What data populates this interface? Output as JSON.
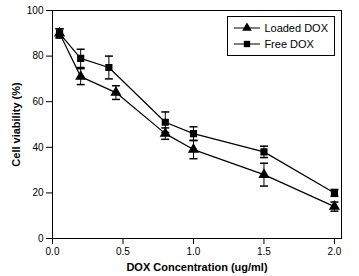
{
  "chart_data": {
    "type": "line",
    "x_label": "DOX Concentration (ug/ml)",
    "y_label": "Cell viability (%)",
    "xlim": [
      0,
      2.05
    ],
    "xticks": [
      {
        "value": 0,
        "label": "0.0"
      },
      0.5,
      {
        "value": 1,
        "label": "1.0"
      },
      1.5,
      {
        "value": 2,
        "label": "2.0"
      }
    ],
    "ylim": [
      0,
      100
    ],
    "yticks": [
      0,
      20,
      40,
      60,
      80,
      100
    ],
    "legend": "top-right",
    "series": [
      {
        "name": "Loaded DOX",
        "color": "#000000",
        "marker": "triangle",
        "line_style": "solid",
        "x": [
          0.05,
          0.2,
          0.45,
          0.8,
          1.0,
          1.5,
          2.0
        ],
        "values": [
          90,
          71,
          64,
          46,
          39,
          28,
          14
        ],
        "errors": [
          2,
          3.5,
          3,
          2.5,
          4,
          5,
          2
        ]
      },
      {
        "name": "Free DOX",
        "color": "#000000",
        "marker": "square",
        "line_style": "solid",
        "x": [
          0.05,
          0.2,
          0.4,
          0.8,
          1.0,
          1.5,
          2.0
        ],
        "values": [
          90,
          79,
          75,
          51,
          46,
          38,
          20
        ],
        "errors": [
          2,
          4,
          5,
          4.5,
          3,
          2.5,
          1.5
        ]
      }
    ]
  }
}
